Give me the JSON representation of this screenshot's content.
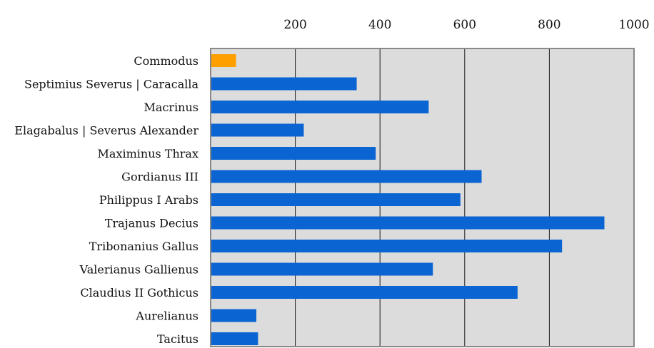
{
  "chart_data": {
    "type": "bar",
    "orientation": "horizontal",
    "categories": [
      "Commodus",
      "Septimius Severus | Caracalla",
      "Macrinus",
      "Elagabalus | Severus Alexander",
      "Maximinus Thrax",
      "Gordianus III",
      "Philippus I Arabs",
      "Trajanus Decius",
      "Tribonanius Gallus",
      "Valerianus Gallienus",
      "Claudius II Gothicus",
      "Aurelianus",
      "Tacitus"
    ],
    "values": [
      60,
      345,
      515,
      220,
      390,
      640,
      590,
      930,
      830,
      525,
      725,
      108,
      112
    ],
    "highlight_index": 0,
    "xlim": [
      0,
      1000
    ],
    "xticks": [
      200,
      400,
      600,
      800,
      1000
    ],
    "x_axis_position": "top",
    "grid": true,
    "colors": {
      "bar": "#0a64d2",
      "highlight": "#ff9f00",
      "plot_background": "#dcdcdc",
      "grid": "#111111",
      "frame": "#888888"
    },
    "title": "",
    "xlabel": "",
    "ylabel": ""
  }
}
